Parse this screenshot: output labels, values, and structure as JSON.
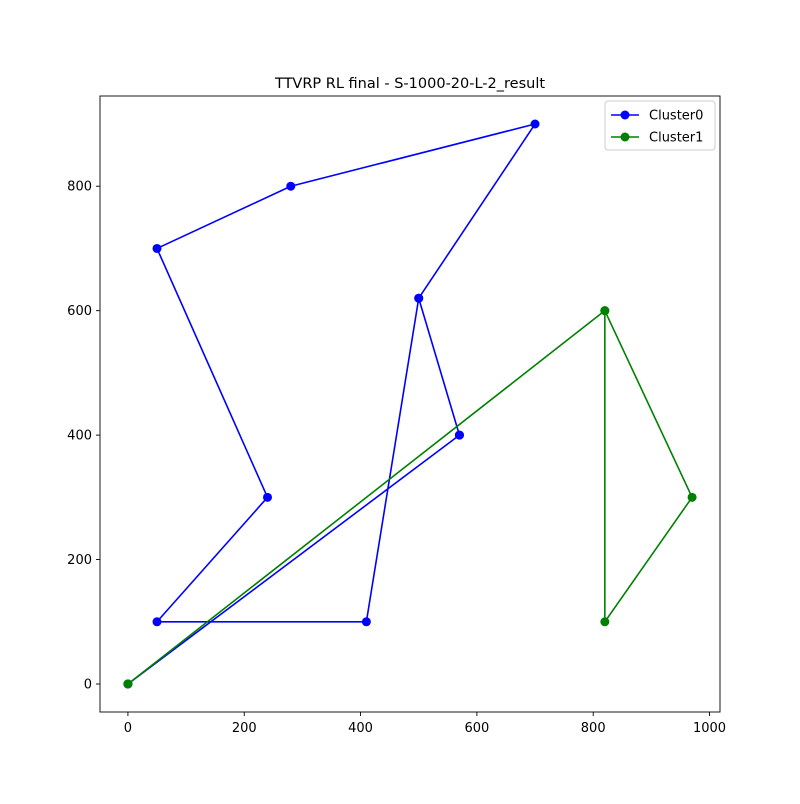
{
  "chart_data": {
    "type": "line",
    "title": "TTVRP RL final - S-1000-20-L-2_result",
    "xlabel": "",
    "ylabel": "",
    "xlim": [
      -48,
      1018
    ],
    "ylim": [
      -45,
      945
    ],
    "xticks": [
      0,
      200,
      400,
      600,
      800,
      1000
    ],
    "yticks": [
      0,
      200,
      400,
      600,
      800
    ],
    "xtick_labels": [
      "0",
      "200",
      "400",
      "600",
      "800",
      "1000"
    ],
    "ytick_labels": [
      "0",
      "200",
      "400",
      "600",
      "800"
    ],
    "grid": false,
    "legend_position": "top-right",
    "series": [
      {
        "name": "Cluster0",
        "color": "#0000ff",
        "marker": "circle",
        "x": [
          0,
          570,
          500,
          700,
          280,
          50,
          240,
          50,
          410,
          500,
          570,
          0
        ],
        "y": [
          0,
          400,
          620,
          900,
          800,
          700,
          300,
          100,
          100,
          620,
          400,
          0
        ]
      },
      {
        "name": "Cluster1",
        "color": "#008000",
        "marker": "circle",
        "x": [
          0,
          820,
          970,
          820,
          820,
          0
        ],
        "y": [
          0,
          600,
          300,
          100,
          600,
          0
        ]
      }
    ]
  }
}
